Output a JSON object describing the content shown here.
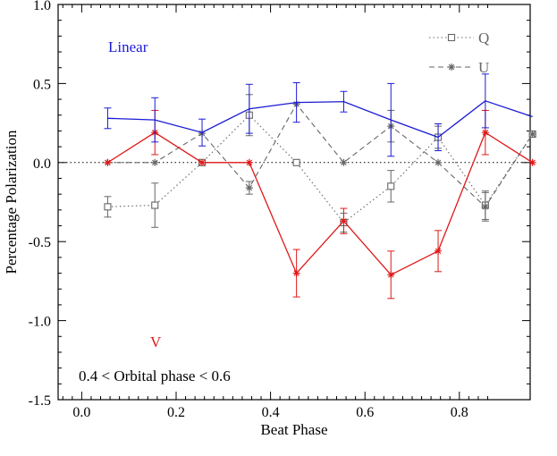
{
  "chart_data": {
    "type": "line",
    "xlabel": "Beat Phase",
    "ylabel": "Percentage Polarization",
    "xlim": [
      -0.05,
      0.95
    ],
    "ylim": [
      -1.5,
      1.0
    ],
    "xticks": [
      0.0,
      0.2,
      0.4,
      0.6,
      0.8
    ],
    "xtick_labels": [
      "0.0",
      "0.2",
      "0.4",
      "0.6",
      "0.8"
    ],
    "yticks": [
      -1.5,
      -1.0,
      -0.5,
      0.0,
      0.5,
      1.0
    ],
    "ytick_labels": [
      "-1.5",
      "-1.0",
      "-0.5",
      "0.0",
      "0.5",
      "1.0"
    ],
    "x": [
      0.055,
      0.155,
      0.255,
      0.355,
      0.455,
      0.555,
      0.655,
      0.755,
      0.855,
      0.955
    ],
    "zero_line": true,
    "legend_position": "top-right",
    "legend": [
      {
        "label": "Q",
        "series": "Q"
      },
      {
        "label": "U",
        "series": "U"
      }
    ],
    "annotations": {
      "linear_label": "Linear",
      "v_label": "V",
      "phase_note": "0.4 < Orbital phase < 0.6"
    },
    "series": [
      {
        "name": "Linear",
        "color": "#1a1ad6",
        "line": "solid",
        "marker": "none",
        "values": [
          0.28,
          0.27,
          0.19,
          0.34,
          0.38,
          0.385,
          0.27,
          0.16,
          0.39,
          0.29
        ],
        "errors": [
          0.065,
          0.14,
          0.085,
          0.155,
          0.125,
          0.065,
          0.23,
          0.085,
          0.17,
          null
        ]
      },
      {
        "name": "V",
        "color": "#e01818",
        "line": "solid",
        "marker": "asterisk",
        "values": [
          0.0,
          0.19,
          0.0,
          0.0,
          -0.7,
          -0.37,
          -0.71,
          -0.56,
          0.19,
          0.0
        ],
        "errors": [
          null,
          0.14,
          null,
          null,
          0.15,
          0.08,
          0.15,
          0.13,
          0.14,
          null
        ]
      },
      {
        "name": "Q",
        "color": "#666666",
        "line": "dotted",
        "marker": "square",
        "values": [
          -0.28,
          -0.27,
          0.0,
          0.3,
          0.0,
          -0.38,
          -0.15,
          0.16,
          -0.27,
          0.18
        ],
        "errors": [
          0.065,
          0.14,
          null,
          0.13,
          null,
          0.06,
          0.1,
          0.07,
          0.09,
          null
        ]
      },
      {
        "name": "U",
        "color": "#666666",
        "line": "dashed",
        "marker": "asterisk",
        "values": [
          0.0,
          0.0,
          0.185,
          -0.16,
          0.37,
          0.0,
          0.23,
          0.0,
          -0.28,
          0.18
        ],
        "errors": [
          null,
          null,
          null,
          0.04,
          null,
          null,
          0.1,
          null,
          0.09,
          null
        ]
      }
    ]
  }
}
